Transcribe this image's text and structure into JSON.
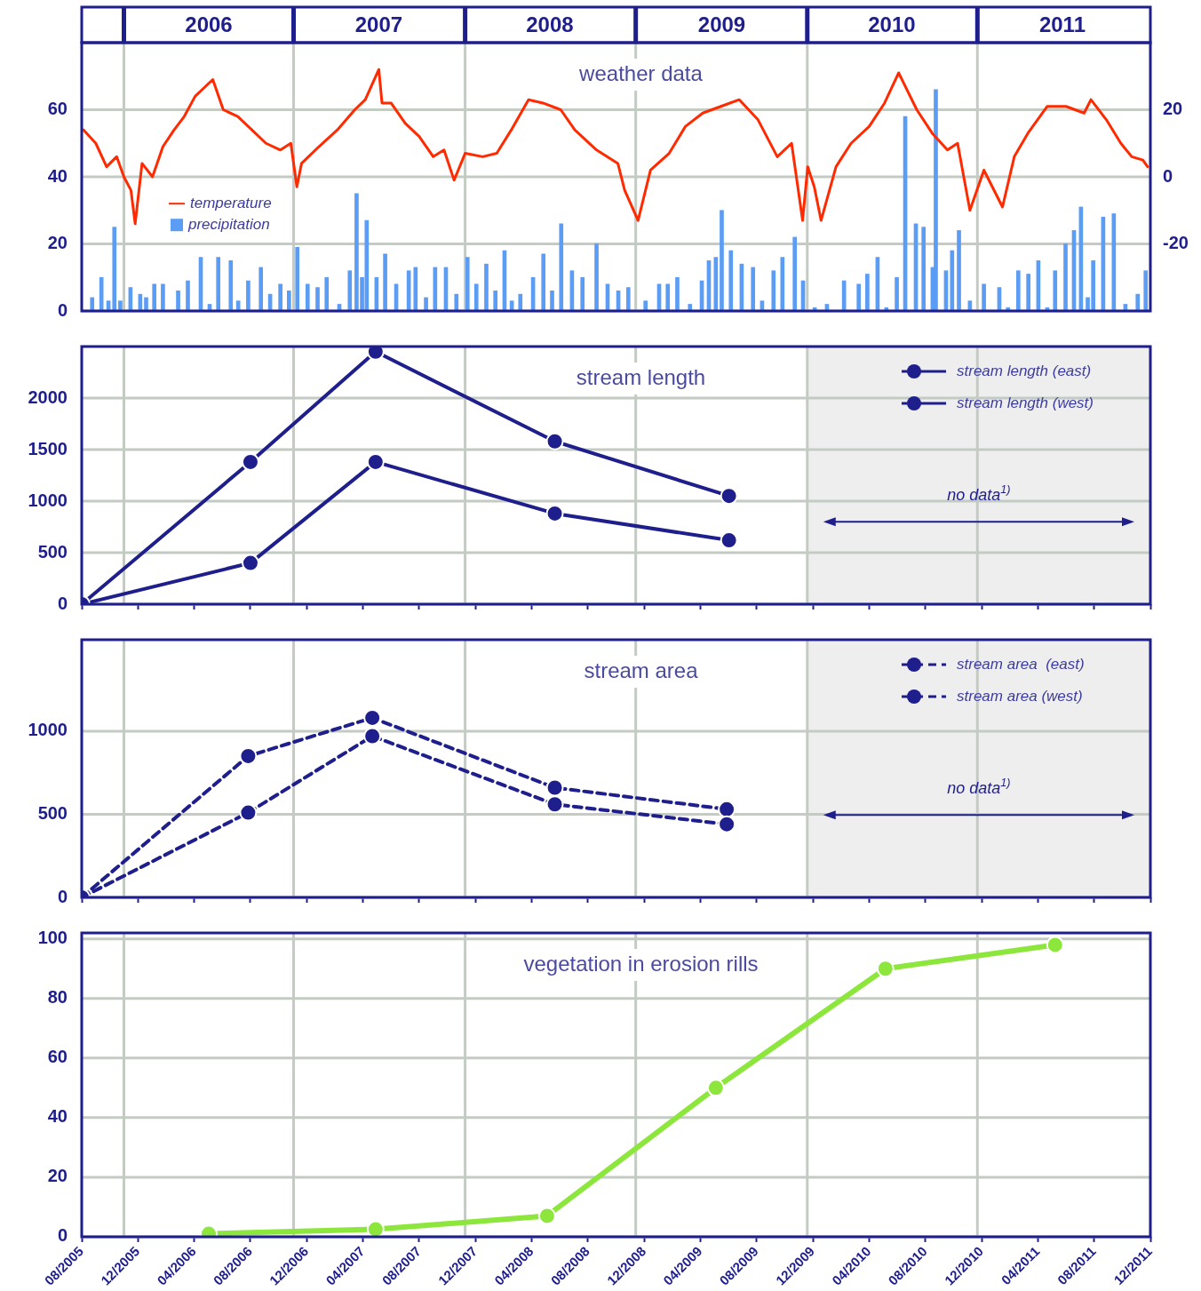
{
  "chart_data": [
    {
      "type": "line",
      "title": "weather data",
      "legend": "left",
      "grid": true,
      "xlim": [
        "2005-08",
        "2011-12"
      ],
      "ylim": [
        0,
        80
      ],
      "yticks": [
        0,
        20,
        40,
        60
      ],
      "y2lim": [
        -40,
        40
      ],
      "y2ticks": [
        -20,
        0,
        20
      ],
      "xticks": [
        {
          "value": "2005-11-01",
          "label": null
        },
        {
          "value": "2006-05-02",
          "label": "2006"
        },
        {
          "value": "2006-11-03",
          "label": null
        },
        {
          "value": "2007-05-05",
          "label": "2007"
        },
        {
          "value": "2007-11-09",
          "label": null
        },
        {
          "value": "2008-05-10",
          "label": "2008"
        },
        {
          "value": "2008-11-13",
          "label": null
        },
        {
          "value": "2009-05-17",
          "label": "2009"
        },
        {
          "value": "2009-11-19",
          "label": null
        },
        {
          "value": "2010-05-20",
          "label": "2010"
        },
        {
          "value": "2010-11-22",
          "label": null
        },
        {
          "value": "2011-05-24",
          "label": "2011"
        }
      ],
      "series": [
        {
          "name": "temperature",
          "type": "line",
          "axis": "y2",
          "color": "#ff2a00",
          "x": [
            "2005-08-05",
            "2005-09-01",
            "2005-09-24",
            "2005-10-16",
            "2005-11-01",
            "2005-11-16",
            "2005-11-25",
            "2005-12-10",
            "2006-01-02",
            "2006-01-25",
            "2006-02-17",
            "2006-03-10",
            "2006-04-03",
            "2006-05-11",
            "2006-06-03",
            "2006-07-04",
            "2006-08-04",
            "2006-09-04",
            "2006-10-05",
            "2006-10-28",
            "2006-11-10",
            "2006-11-20",
            "2006-12-28",
            "2007-02-06",
            "2007-03-14",
            "2007-04-06",
            "2007-05-05",
            "2007-05-12",
            "2007-06-01",
            "2007-07-01",
            "2007-08-01",
            "2007-09-01",
            "2007-09-24",
            "2007-10-16",
            "2007-11-09",
            "2007-12-17",
            "2008-01-17",
            "2008-02-17",
            "2008-03-25",
            "2008-04-25",
            "2008-06-03",
            "2008-07-03",
            "2008-08-20",
            "2008-10-05",
            "2008-10-20",
            "2008-11-18",
            "2008-12-15",
            "2009-01-25",
            "2009-02-27",
            "2009-04-06",
            "2009-05-15",
            "2009-06-24",
            "2009-08-04",
            "2009-09-15",
            "2009-10-16",
            "2009-11-09",
            "2009-11-20",
            "2009-12-04",
            "2009-12-19",
            "2010-01-21",
            "2010-02-21",
            "2010-04-01",
            "2010-05-04",
            "2010-06-04",
            "2010-07-13",
            "2010-08-16",
            "2010-09-18",
            "2010-10-10",
            "2010-11-06",
            "2010-12-06",
            "2011-01-16",
            "2011-02-10",
            "2011-03-10",
            "2011-04-21",
            "2011-06-01",
            "2011-07-10",
            "2011-07-25",
            "2011-08-28",
            "2011-09-28",
            "2011-10-22",
            "2011-11-15",
            "2011-11-25"
          ],
          "values": [
            14,
            10,
            3,
            6,
            0,
            -4,
            -14,
            4,
            0,
            9,
            14,
            18,
            24,
            29,
            20,
            18,
            14,
            10,
            8,
            10,
            -3,
            4,
            9,
            14,
            20,
            23,
            32,
            22,
            22,
            16,
            12,
            6,
            8,
            -1,
            7,
            6,
            7,
            14,
            23,
            22,
            20,
            14,
            8,
            4,
            -4,
            -13,
            2,
            7,
            15,
            19,
            21,
            23,
            17,
            6,
            10,
            -13,
            3,
            -3,
            -13,
            3,
            10,
            15,
            22,
            31,
            20,
            13,
            8,
            10,
            -10,
            2,
            -9,
            6,
            13,
            21,
            21,
            19,
            23,
            17,
            10,
            6,
            5,
            3
          ]
        },
        {
          "name": "precipitation",
          "type": "bar",
          "color": "#5b9cf5",
          "x": [
            "2005-08-24",
            "2005-09-13",
            "2005-09-28",
            "2005-10-11",
            "2005-10-24",
            "2005-11-15",
            "2005-12-06",
            "2005-12-19",
            "2006-01-06",
            "2006-01-25",
            "2006-02-25",
            "2006-03-18",
            "2006-04-15",
            "2006-05-04",
            "2006-05-23",
            "2006-06-19",
            "2006-07-05",
            "2006-07-27",
            "2006-08-24",
            "2006-09-13",
            "2006-10-05",
            "2006-10-24",
            "2006-11-11",
            "2006-12-03",
            "2006-12-25",
            "2007-01-14",
            "2007-02-10",
            "2007-03-03",
            "2007-03-18",
            "2007-03-30",
            "2007-04-09",
            "2007-04-30",
            "2007-05-19",
            "2007-06-12",
            "2007-07-09",
            "2007-07-24",
            "2007-08-16",
            "2007-09-05",
            "2007-09-28",
            "2007-10-21",
            "2007-11-14",
            "2007-12-03",
            "2007-12-25",
            "2008-01-14",
            "2008-02-03",
            "2008-02-18",
            "2008-03-07",
            "2008-04-04",
            "2008-04-26",
            "2008-05-15",
            "2008-06-04",
            "2008-06-27",
            "2008-07-20",
            "2008-08-20",
            "2008-09-13",
            "2008-10-06",
            "2008-10-28",
            "2008-12-04",
            "2009-01-03",
            "2009-01-22",
            "2009-02-11",
            "2009-03-09",
            "2009-04-04",
            "2009-04-19",
            "2009-05-04",
            "2009-05-17",
            "2009-06-06",
            "2009-06-29",
            "2009-07-24",
            "2009-08-13",
            "2009-09-07",
            "2009-09-26",
            "2009-10-23",
            "2009-11-10",
            "2009-12-05",
            "2010-01-01",
            "2010-02-07",
            "2010-03-09",
            "2010-03-28",
            "2010-04-19",
            "2010-05-08",
            "2010-05-31",
            "2010-06-18",
            "2010-07-11",
            "2010-07-28",
            "2010-08-17",
            "2010-08-24",
            "2010-09-15",
            "2010-09-28",
            "2010-10-13",
            "2010-11-06",
            "2010-12-06",
            "2011-01-09",
            "2011-01-28",
            "2011-02-18",
            "2011-03-11",
            "2011-04-02",
            "2011-04-21",
            "2011-05-08",
            "2011-05-31",
            "2011-06-18",
            "2011-07-03",
            "2011-07-18",
            "2011-07-30",
            "2011-08-21",
            "2011-09-13",
            "2011-10-08",
            "2011-11-04",
            "2011-11-21"
          ],
          "values": [
            4,
            10,
            3,
            25,
            3,
            7,
            5,
            4,
            8,
            8,
            6,
            9,
            16,
            2,
            16,
            15,
            3,
            9,
            13,
            5,
            8,
            6,
            19,
            8,
            7,
            10,
            2,
            12,
            35,
            10,
            27,
            10,
            17,
            8,
            12,
            13,
            4,
            13,
            13,
            5,
            16,
            8,
            14,
            6,
            18,
            3,
            5,
            10,
            17,
            6,
            26,
            12,
            10,
            20,
            8,
            6,
            7,
            3,
            8,
            8,
            10,
            2,
            9,
            15,
            16,
            30,
            18,
            14,
            13,
            3,
            12,
            16,
            22,
            9,
            1,
            2,
            9,
            8,
            11,
            16,
            1,
            10,
            58,
            26,
            25,
            13,
            66,
            12,
            18,
            24,
            3,
            8,
            7,
            1,
            12,
            11,
            15,
            1,
            12,
            20,
            24,
            31,
            4,
            15,
            28,
            29,
            2,
            5,
            12
          ]
        }
      ]
    },
    {
      "type": "line",
      "title": "stream length",
      "legend": "top right",
      "grid": true,
      "tick_labels": "y",
      "marker": "circle",
      "line_style": "solid",
      "xlim": [
        "2005-08",
        "2011-12"
      ],
      "ylim": [
        0,
        2500
      ],
      "yticks": [
        0,
        500,
        1000,
        1500,
        2000
      ],
      "xticks": [
        {
          "value": "2005-08",
          "label": null
        },
        {
          "value": "2005-12",
          "label": null
        },
        {
          "value": "2006-04",
          "label": null
        },
        {
          "value": "2006-08",
          "label": null
        },
        {
          "value": "2006-12",
          "label": null
        },
        {
          "value": "2007-04",
          "label": null
        },
        {
          "value": "2007-08",
          "label": null
        },
        {
          "value": "2007-12",
          "label": null
        },
        {
          "value": "2008-04",
          "label": null
        },
        {
          "value": "2008-08",
          "label": null
        },
        {
          "value": "2008-12",
          "label": null
        },
        {
          "value": "2009-04",
          "label": null
        },
        {
          "value": "2009-08",
          "label": null
        },
        {
          "value": "2009-12",
          "label": null
        },
        {
          "value": "2010-04",
          "label": null
        },
        {
          "value": "2010-08",
          "label": null
        },
        {
          "value": "2010-12",
          "label": null
        },
        {
          "value": "2011-04",
          "label": null
        },
        {
          "value": "2011-08",
          "label": null
        },
        {
          "value": "2011-12",
          "label": null
        }
      ],
      "bands": [
        {
          "axis": "x",
          "from": "2009-11-19",
          "to": "2011-12",
          "label": "no data$^{1)}$",
          "color": "#eeeeee"
        }
      ],
      "x": [
        "2005-08-01",
        "2006-08-01",
        "2007-04-28",
        "2008-05-21",
        "2009-06-02"
      ],
      "series": [
        {
          "name": "stream length (east)",
          "color": "#1e1e8c",
          "values": [
            0,
            400,
            1380,
            880,
            620
          ]
        },
        {
          "name": "stream length (west)",
          "color": "#1e1e8c",
          "values": [
            0,
            1380,
            2450,
            1580,
            1050
          ]
        }
      ]
    },
    {
      "type": "line",
      "title": "stream area",
      "legend": "top right",
      "grid": true,
      "tick_labels": "y",
      "marker": "circle",
      "line_style": "dashed",
      "xlim": [
        "2005-08",
        "2011-12"
      ],
      "ylim": [
        0,
        1550
      ],
      "yticks": [
        0,
        500,
        1000
      ],
      "xticks": [
        {
          "value": "2005-08",
          "label": null
        },
        {
          "value": "2005-12",
          "label": null
        },
        {
          "value": "2006-04",
          "label": null
        },
        {
          "value": "2006-08",
          "label": null
        },
        {
          "value": "2006-12",
          "label": null
        },
        {
          "value": "2007-04",
          "label": null
        },
        {
          "value": "2007-08",
          "label": null
        },
        {
          "value": "2007-12",
          "label": null
        },
        {
          "value": "2008-04",
          "label": null
        },
        {
          "value": "2008-08",
          "label": null
        },
        {
          "value": "2008-12",
          "label": null
        },
        {
          "value": "2009-04",
          "label": null
        },
        {
          "value": "2009-08",
          "label": null
        },
        {
          "value": "2009-12",
          "label": null
        },
        {
          "value": "2010-04",
          "label": null
        },
        {
          "value": "2010-08",
          "label": null
        },
        {
          "value": "2010-12",
          "label": null
        },
        {
          "value": "2011-04",
          "label": null
        },
        {
          "value": "2011-08",
          "label": null
        },
        {
          "value": "2011-12",
          "label": null
        }
      ],
      "bands": [
        {
          "axis": "x",
          "from": "2009-11-19",
          "to": "2011-12",
          "label": "no data$^{1)}$",
          "color": "#eeeeee"
        }
      ],
      "x": [
        "2005-08-01",
        "2006-07-27",
        "2007-04-21",
        "2008-05-21",
        "2009-05-28"
      ],
      "series": [
        {
          "name": "stream area  (east)",
          "color": "#1e1e8c",
          "values": [
            0,
            510,
            970,
            560,
            440
          ]
        },
        {
          "name": "stream area (west)",
          "color": "#1e1e8c",
          "values": [
            0,
            850,
            1080,
            660,
            530
          ]
        }
      ]
    },
    {
      "type": "line",
      "title": "vegetation in erosion rills",
      "grid": true,
      "marker": "circle",
      "line_style": "solid",
      "xlim": [
        "2005-08",
        "2011-12"
      ],
      "ylim": [
        0,
        102
      ],
      "yticks": [
        0,
        20,
        40,
        60,
        80,
        100
      ],
      "xticks": [
        {
          "value": "2005-08",
          "label": "08/2005"
        },
        {
          "value": "2005-12",
          "label": "12/2005"
        },
        {
          "value": "2006-04",
          "label": "04/2006"
        },
        {
          "value": "2006-08",
          "label": "08/2006"
        },
        {
          "value": "2006-12",
          "label": "12/2006"
        },
        {
          "value": "2007-04",
          "label": "04/2007"
        },
        {
          "value": "2007-08",
          "label": "08/2007"
        },
        {
          "value": "2007-12",
          "label": "12/2007"
        },
        {
          "value": "2008-04",
          "label": "04/2008"
        },
        {
          "value": "2008-08",
          "label": "08/2008"
        },
        {
          "value": "2008-12",
          "label": "12/2008"
        },
        {
          "value": "2009-04",
          "label": "04/2009"
        },
        {
          "value": "2009-08",
          "label": "08/2009"
        },
        {
          "value": "2009-12",
          "label": "12/2009"
        },
        {
          "value": "2010-04",
          "label": "04/2010"
        },
        {
          "value": "2010-08",
          "label": "08/2010"
        },
        {
          "value": "2010-12",
          "label": "12/2010"
        },
        {
          "value": "2011-04",
          "label": "04/2011"
        },
        {
          "value": "2011-08",
          "label": "08/2011"
        },
        {
          "value": "2011-12",
          "label": "12/2011"
        }
      ],
      "x": [
        "2006-05-02",
        "2007-04-28",
        "2008-05-04",
        "2009-05-04",
        "2010-05-06",
        "2011-05-08"
      ],
      "series": [
        {
          "color": "#8ce63c",
          "values": [
            1,
            2.5,
            7,
            50,
            90,
            98
          ]
        }
      ]
    }
  ]
}
